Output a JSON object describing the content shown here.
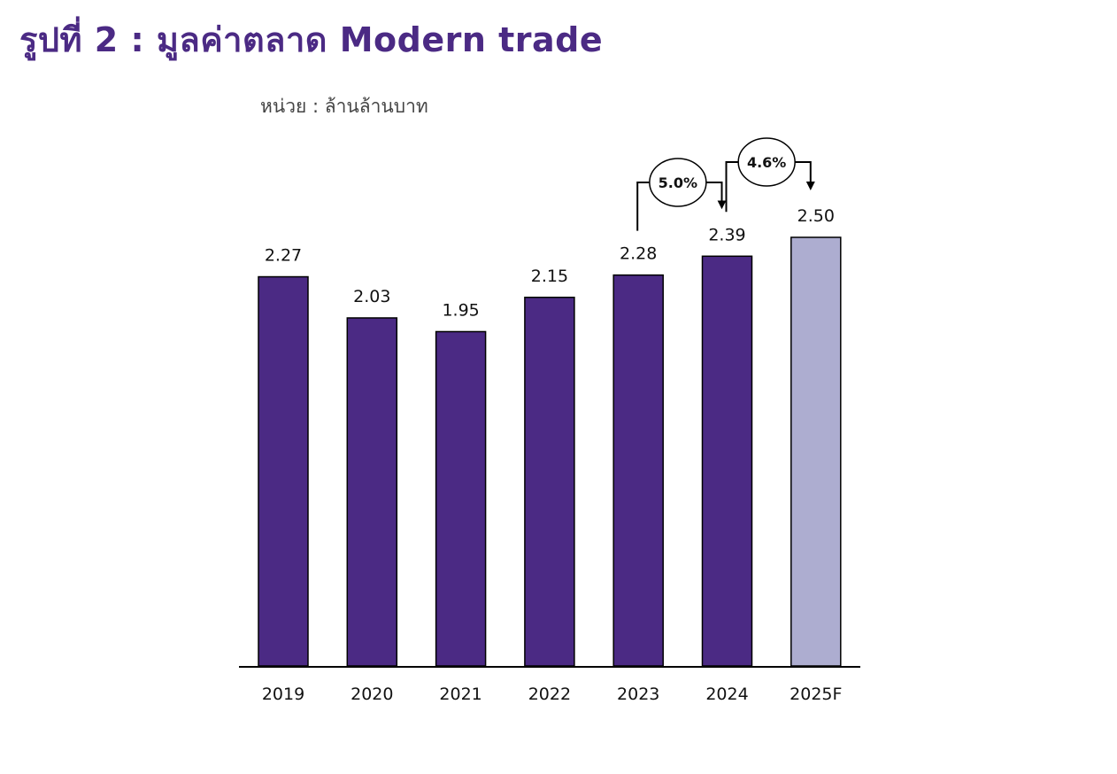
{
  "page": {
    "title": "รูปที่ 2 : มูลค่าตลาด Modern trade",
    "unit": "หน่วย : ล้านล้านบาท"
  },
  "chart_data": {
    "type": "bar",
    "categories": [
      "2019",
      "2020",
      "2021",
      "2022",
      "2023",
      "2024",
      "2025F"
    ],
    "values": [
      2.27,
      2.03,
      1.95,
      2.15,
      2.28,
      2.39,
      2.5
    ],
    "value_labels": [
      "2.27",
      "2.03",
      "1.95",
      "2.15",
      "2.28",
      "2.39",
      "2.50"
    ],
    "title": "",
    "xlabel": "",
    "ylabel": "",
    "ylim": [
      0,
      2.5
    ],
    "grid": false,
    "colors": {
      "actual": "#4b2a84",
      "forecast": "#adadd0",
      "title": "#4b2a84"
    },
    "forecast_categories": [
      "2025F"
    ],
    "annotations": [
      {
        "label": "5.0%",
        "from": "2023",
        "to": "2024"
      },
      {
        "label": "4.6%",
        "from": "2024",
        "to": "2025F"
      }
    ]
  }
}
